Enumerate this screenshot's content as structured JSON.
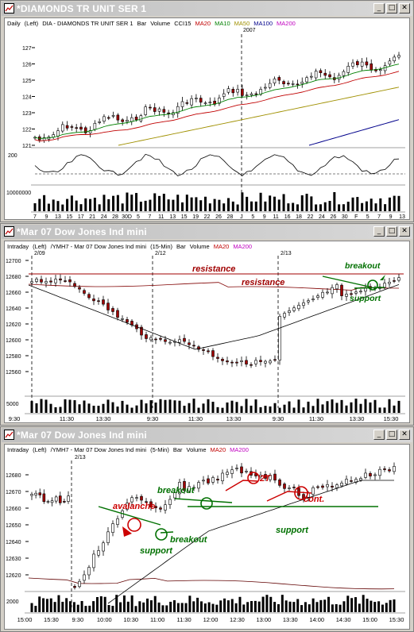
{
  "colors": {
    "titlebar_text": "#ffffff",
    "ma20": "#c00000",
    "ma10": "#008000",
    "ma50": "#a09000",
    "ma100": "#00008b",
    "ma200": "#c000c0",
    "resistance": "#a00000",
    "annotation_red": "#cc0000",
    "annotation_green": "#007000",
    "candle_up": "#ffffff",
    "candle_down": "#a00000"
  },
  "window1": {
    "title": "*DIAMONDS TR UNIT SER 1",
    "icon": "chart-window-icon",
    "header": {
      "period": "Daily",
      "axis": "(Left)",
      "symbol": "DIA - DIAMONDS TR UNIT SER 1",
      "type": "Bar",
      "volume": "Volume",
      "cci": "CCI15",
      "ma20": "MA20",
      "ma10": "MA10",
      "ma50": "MA50",
      "ma100": "MA100",
      "ma200": "MA200"
    },
    "year_label": "2007",
    "price_ticks": [
      "127",
      "126",
      "125",
      "124",
      "123",
      "122",
      "121"
    ],
    "cci_tick": "200",
    "volume_tick": "10000000",
    "date_ticks": [
      "7",
      "9",
      "13",
      "15",
      "17",
      "21",
      "24",
      "28",
      "30D",
      "5",
      "7",
      "11",
      "13",
      "15",
      "19",
      "22",
      "26",
      "28",
      "J",
      "5",
      "9",
      "11",
      "16",
      "18",
      "22",
      "24",
      "26",
      "30",
      "F",
      "5",
      "7",
      "9",
      "13"
    ]
  },
  "window2": {
    "title": "*Mar 07  Dow Jones Ind mini",
    "header": {
      "period": "Intraday",
      "axis": "(Left)",
      "symbol": "/YMH7 - Mar 07  Dow Jones Ind mini",
      "interval": "(15-Min)",
      "type": "Bar",
      "volume": "Volume",
      "ma20": "MA20",
      "ma200": "MA200"
    },
    "date_markers": [
      "2/09",
      "2/12",
      "2/13"
    ],
    "price_ticks": [
      "12700",
      "12680",
      "12660",
      "12640",
      "12620",
      "12600",
      "12580",
      "12560"
    ],
    "volume_tick": "5000",
    "time_ticks": [
      "9:30",
      "11:30",
      "13:30",
      "9:30",
      "11:30",
      "13:30",
      "9:30",
      "11:30",
      "13:30",
      "15:30"
    ],
    "annotations": {
      "resistance_1": "resistance",
      "resistance_2": "resistance",
      "breakout": "breakout",
      "support": "support"
    }
  },
  "window3": {
    "title": "*Mar 07  Dow Jones Ind mini",
    "header": {
      "period": "Intraday",
      "axis": "(Left)",
      "symbol": "/YMH7 - Mar 07  Dow Jones Ind mini",
      "interval": "(5-Min)",
      "type": "Bar",
      "volume": "Volume",
      "ma20": "MA20",
      "ma200": "MA200"
    },
    "date_marker": "2/13",
    "price_ticks": [
      "12680",
      "12670",
      "12660",
      "12650",
      "12640",
      "12630",
      "12620"
    ],
    "volume_tick": "2000",
    "time_ticks": [
      "15:00",
      "15:30",
      "9:30",
      "10:00",
      "10:30",
      "11:00",
      "11:30",
      "12:00",
      "12:30",
      "13:00",
      "13:30",
      "14:00",
      "14:30",
      "15:00",
      "15:30"
    ],
    "annotations": {
      "avalanche": "avalanche",
      "support_1": "support",
      "breakout_1": "breakout",
      "breakout_2": "breakout",
      "two_t": "2T",
      "cont": "cont.",
      "support_2": "support"
    }
  }
}
